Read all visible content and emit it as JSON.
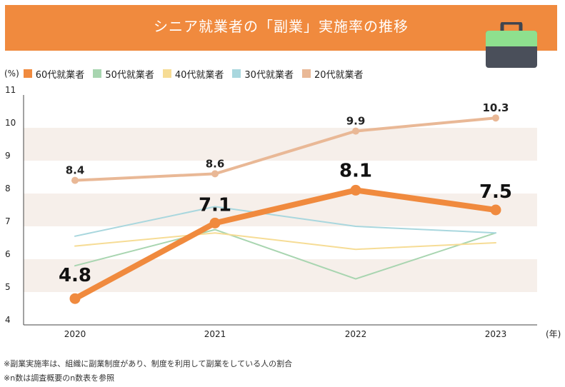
{
  "header": {
    "title": "シニア就業者の「副業」実施率の推移"
  },
  "icon": {
    "name": "briefcase-icon"
  },
  "chart_data": {
    "type": "line",
    "title": "シニア就業者の「副業」実施率の推移",
    "ylabel": "(%)",
    "xlabel": "(年)",
    "categories": [
      "2020",
      "2021",
      "2022",
      "2023"
    ],
    "ylim": [
      4,
      11
    ],
    "yticks": [
      4,
      5,
      6,
      7,
      8,
      9,
      10,
      11
    ],
    "grid": "horizontal bands",
    "legend_position": "top-left",
    "series": [
      {
        "name": "60代就業者",
        "color": "#F08A3E",
        "values": [
          4.8,
          7.1,
          8.1,
          7.5
        ],
        "labels": [
          "4.8",
          "7.1",
          "8.1",
          "7.5"
        ],
        "emphasis": true
      },
      {
        "name": "50代就業者",
        "color": "#A8D5B0",
        "values": [
          5.8,
          6.9,
          5.4,
          6.8
        ]
      },
      {
        "name": "40代就業者",
        "color": "#F6DC95",
        "values": [
          6.4,
          6.8,
          6.3,
          6.5
        ]
      },
      {
        "name": "30代就業者",
        "color": "#A9D7DE",
        "values": [
          6.7,
          7.6,
          7.0,
          6.8
        ]
      },
      {
        "name": "20代就業者",
        "color": "#E9B896",
        "values": [
          8.4,
          8.6,
          9.9,
          10.3
        ],
        "labels": [
          "8.4",
          "8.6",
          "9.9",
          "10.3"
        ]
      }
    ]
  },
  "footnotes": [
    "※副業実施率は、組織に副業制度があり、制度を利用して副業をしている人の割合",
    "※n数は調査概要のn数表を参照"
  ]
}
